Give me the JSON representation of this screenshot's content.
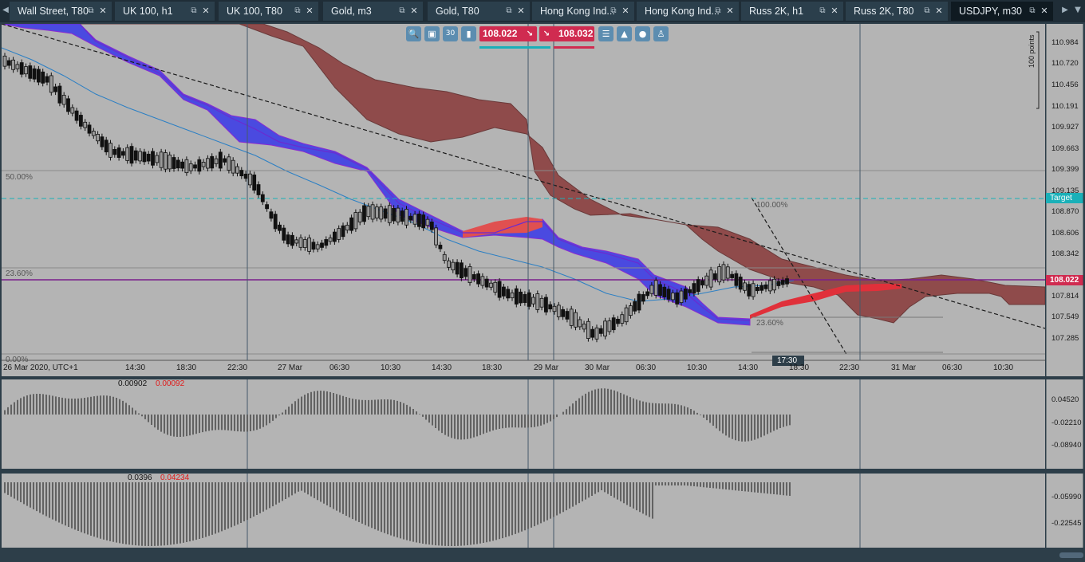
{
  "tabs": [
    {
      "label": "Wall Street, T80",
      "active": false
    },
    {
      "label": "UK 100, h1",
      "active": false
    },
    {
      "label": "UK 100, T80",
      "active": false
    },
    {
      "label": "Gold, m3",
      "active": false
    },
    {
      "label": "Gold, T80",
      "active": false
    },
    {
      "label": "Hong Kong Ind...",
      "active": false
    },
    {
      "label": "Hong Kong Ind...",
      "active": false
    },
    {
      "label": "Russ 2K, h1",
      "active": false
    },
    {
      "label": "Russ 2K, T80",
      "active": false
    },
    {
      "label": "USDJPY, m30",
      "active": true
    }
  ],
  "tabbar": {
    "scroll_left": "◀",
    "scroll_right": "▶",
    "menu": "▼",
    "popout": "⧉",
    "close": "✕"
  },
  "toolbar": {
    "zoom": "🔍",
    "screenshot": "▣",
    "timeframe": "30",
    "candles": "▮",
    "sell_price": "108.022",
    "sell_arrow": "↘",
    "buy_arrow": "↘",
    "buy_price": "108.032",
    "list": "☰",
    "chart_type": "▲",
    "theme": "●",
    "trader": "♙"
  },
  "main_chart": {
    "price_axis": [
      "110.984",
      "110.720",
      "110.456",
      "110.191",
      "109.927",
      "109.663",
      "109.399",
      "109.135",
      "108.870",
      "108.606",
      "108.342",
      "108.022",
      "107.814",
      "107.549",
      "107.285"
    ],
    "current_price": "108.022",
    "target_label": "Target",
    "points_label": "100 points",
    "time_axis": [
      "26 Mar 2020, UTC+1",
      "14:30",
      "18:30",
      "22:30",
      "27 Mar",
      "06:30",
      "10:30",
      "14:30",
      "18:30",
      "29 Mar",
      "30 Mar",
      "06:30",
      "10:30",
      "14:30",
      "18:30",
      "22:30",
      "31 Mar",
      "06:30",
      "10:30"
    ],
    "cursor_time": "17:30",
    "fib_left": [
      "50.00%",
      "23.60%",
      "0.00%"
    ],
    "fib_right": [
      "100.00%",
      "23.60%"
    ]
  },
  "indicator_1": {
    "value_a": "0.00902",
    "value_b": "0.00092",
    "axis": [
      "0.04520",
      "-0.02210",
      "-0.08940"
    ]
  },
  "indicator_2": {
    "value_a": "0.0396",
    "value_b": "0.04234",
    "axis": [
      "-0.05990",
      "-0.22545"
    ]
  },
  "colors": {
    "up_cloud": "#8f4b4b",
    "down_cloud": "#4a4ae0",
    "sell": "#d02b50",
    "buy_line": "#1ab0b8",
    "price_line": "#7a1f8c"
  }
}
